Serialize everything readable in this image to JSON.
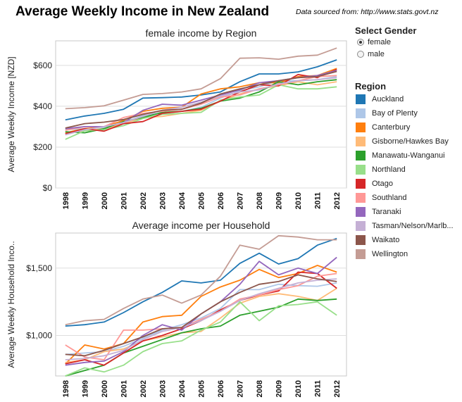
{
  "header": {
    "title": "Average Weekly Income in New Zealand",
    "source": "Data sourced from: http://www.stats.govt.nz"
  },
  "gender_filter": {
    "title": "Select Gender",
    "options": [
      {
        "label": "female",
        "selected": true
      },
      {
        "label": "male",
        "selected": false
      }
    ]
  },
  "region_legend": {
    "title": "Region",
    "items": [
      {
        "label": "Auckland",
        "color": "#1f77b4"
      },
      {
        "label": "Bay of Plenty",
        "color": "#aec7e8"
      },
      {
        "label": "Canterbury",
        "color": "#ff7f0e"
      },
      {
        "label": "Gisborne/Hawkes Bay",
        "color": "#ffbb78"
      },
      {
        "label": "Manawatu-Wanganui",
        "color": "#2ca02c"
      },
      {
        "label": "Northland",
        "color": "#98df8a"
      },
      {
        "label": "Otago",
        "color": "#d62728"
      },
      {
        "label": "Southland",
        "color": "#ff9896"
      },
      {
        "label": "Taranaki",
        "color": "#9467bd"
      },
      {
        "label": "Tasman/Nelson/Marlb...",
        "color": "#c5b0d5"
      },
      {
        "label": "Waikato",
        "color": "#8c564b"
      },
      {
        "label": "Wellington",
        "color": "#c49c94"
      }
    ]
  },
  "chart_data": [
    {
      "type": "line",
      "title": "female income by Region",
      "ylabel": "Average Weekly Income [NZD]",
      "xlabel": "",
      "ylim": [
        0,
        720
      ],
      "yticks": [
        0,
        200,
        400,
        600
      ],
      "ytick_labels": [
        "$0",
        "$200",
        "$400",
        "$600"
      ],
      "x": [
        "1998",
        "1999",
        "2000",
        "2001",
        "2002",
        "2003",
        "2004",
        "2005",
        "2006",
        "2007",
        "2008",
        "2009",
        "2010",
        "2011",
        "2012"
      ],
      "grid": "horizontal",
      "series": [
        {
          "name": "Auckland",
          "color": "#1f77b4",
          "values": [
            333,
            352,
            365,
            385,
            440,
            442,
            445,
            455,
            470,
            520,
            558,
            558,
            568,
            593,
            627
          ]
        },
        {
          "name": "Bay of Plenty",
          "color": "#aec7e8",
          "values": [
            285,
            290,
            295,
            320,
            355,
            365,
            375,
            395,
            440,
            475,
            495,
            525,
            525,
            530,
            545
          ]
        },
        {
          "name": "Canterbury",
          "color": "#ff7f0e",
          "values": [
            270,
            290,
            300,
            330,
            375,
            390,
            395,
            460,
            485,
            495,
            515,
            515,
            545,
            550,
            585
          ]
        },
        {
          "name": "Gisborne/Hawkes Bay",
          "color": "#ffbb78",
          "values": [
            265,
            280,
            290,
            315,
            345,
            350,
            365,
            380,
            425,
            460,
            485,
            500,
            520,
            505,
            520
          ]
        },
        {
          "name": "Manawatu-Wanganui",
          "color": "#2ca02c",
          "values": [
            275,
            270,
            290,
            325,
            345,
            370,
            375,
            390,
            425,
            440,
            470,
            520,
            505,
            520,
            530
          ]
        },
        {
          "name": "Northland",
          "color": "#98df8a",
          "values": [
            238,
            280,
            285,
            305,
            340,
            360,
            365,
            370,
            430,
            445,
            455,
            505,
            485,
            485,
            495
          ]
        },
        {
          "name": "Otago",
          "color": "#d62728",
          "values": [
            265,
            290,
            278,
            315,
            325,
            365,
            375,
            385,
            425,
            470,
            505,
            500,
            555,
            540,
            580
          ]
        },
        {
          "name": "Southland",
          "color": "#ff9896",
          "values": [
            282,
            300,
            300,
            345,
            365,
            375,
            385,
            410,
            445,
            455,
            485,
            505,
            525,
            545,
            550
          ]
        },
        {
          "name": "Taranaki",
          "color": "#9467bd",
          "values": [
            290,
            300,
            300,
            320,
            380,
            410,
            405,
            430,
            455,
            480,
            515,
            525,
            540,
            550,
            575
          ]
        },
        {
          "name": "Tasman/Nelson/Marlb...",
          "color": "#c5b0d5",
          "values": [
            260,
            285,
            300,
            320,
            350,
            380,
            395,
            420,
            450,
            470,
            480,
            510,
            525,
            530,
            540
          ]
        },
        {
          "name": "Waikato",
          "color": "#8c564b",
          "values": [
            293,
            315,
            322,
            335,
            360,
            380,
            385,
            415,
            460,
            485,
            505,
            525,
            540,
            545,
            570
          ]
        },
        {
          "name": "Wellington",
          "color": "#c49c94",
          "values": [
            388,
            393,
            402,
            430,
            458,
            462,
            470,
            485,
            535,
            635,
            637,
            630,
            645,
            650,
            685
          ]
        }
      ]
    },
    {
      "type": "line",
      "title": "Average income per Household",
      "ylabel": "Average Weekly Household Inco..",
      "xlabel": "",
      "ylim": [
        700,
        1760
      ],
      "yticks": [
        1000,
        1500
      ],
      "ytick_labels": [
        "$1,000",
        "$1,500"
      ],
      "x": [
        "1998",
        "1999",
        "2000",
        "2001",
        "2002",
        "2003",
        "2004",
        "2005",
        "2006",
        "2007",
        "2008",
        "2009",
        "2010",
        "2011",
        "2012"
      ],
      "grid": "horizontal",
      "series": [
        {
          "name": "Auckland",
          "color": "#1f77b4",
          "values": [
            1070,
            1080,
            1100,
            1170,
            1250,
            1320,
            1405,
            1390,
            1410,
            1535,
            1610,
            1530,
            1570,
            1670,
            1720
          ]
        },
        {
          "name": "Bay of Plenty",
          "color": "#aec7e8",
          "values": [
            860,
            870,
            880,
            920,
            980,
            1040,
            1080,
            1130,
            1200,
            1340,
            1340,
            1380,
            1370,
            1365,
            1390
          ]
        },
        {
          "name": "Canterbury",
          "color": "#ff7f0e",
          "values": [
            790,
            930,
            900,
            940,
            1100,
            1140,
            1150,
            1290,
            1360,
            1410,
            1490,
            1430,
            1460,
            1520,
            1470
          ]
        },
        {
          "name": "Gisborne/Hawkes Bay",
          "color": "#ffbb78",
          "values": [
            800,
            820,
            880,
            900,
            960,
            990,
            1020,
            1030,
            1130,
            1240,
            1290,
            1310,
            1290,
            1260,
            1350
          ]
        },
        {
          "name": "Manawatu-Wanganui",
          "color": "#2ca02c",
          "values": [
            700,
            740,
            780,
            870,
            920,
            970,
            1020,
            1050,
            1070,
            1150,
            1180,
            1210,
            1270,
            1260,
            1270
          ]
        },
        {
          "name": "Northland",
          "color": "#98df8a",
          "values": [
            700,
            760,
            730,
            780,
            880,
            940,
            960,
            1040,
            1100,
            1250,
            1110,
            1220,
            1230,
            1250,
            1150
          ]
        },
        {
          "name": "Otago",
          "color": "#d62728",
          "values": [
            790,
            820,
            780,
            870,
            960,
            1000,
            1050,
            1110,
            1190,
            1260,
            1300,
            1330,
            1470,
            1460,
            1350
          ]
        },
        {
          "name": "Southland",
          "color": "#ff9896",
          "values": [
            930,
            840,
            820,
            1040,
            1040,
            1050,
            1060,
            1120,
            1180,
            1270,
            1300,
            1340,
            1370,
            1440,
            1460
          ]
        },
        {
          "name": "Taranaki",
          "color": "#9467bd",
          "values": [
            780,
            800,
            810,
            880,
            1000,
            1080,
            1040,
            1160,
            1250,
            1380,
            1550,
            1450,
            1500,
            1460,
            1580
          ]
        },
        {
          "name": "Tasman/Nelson/Marlb...",
          "color": "#c5b0d5",
          "values": [
            820,
            830,
            850,
            890,
            970,
            1030,
            1060,
            1110,
            1180,
            1260,
            1310,
            1350,
            1390,
            1410,
            1420
          ]
        },
        {
          "name": "Waikato",
          "color": "#8c564b",
          "values": [
            860,
            850,
            890,
            940,
            990,
            1050,
            1060,
            1160,
            1250,
            1320,
            1380,
            1400,
            1450,
            1420,
            1400
          ]
        },
        {
          "name": "Wellington",
          "color": "#c49c94",
          "values": [
            1080,
            1110,
            1120,
            1200,
            1270,
            1300,
            1240,
            1300,
            1440,
            1670,
            1640,
            1740,
            1730,
            1710,
            1710
          ]
        }
      ]
    }
  ]
}
